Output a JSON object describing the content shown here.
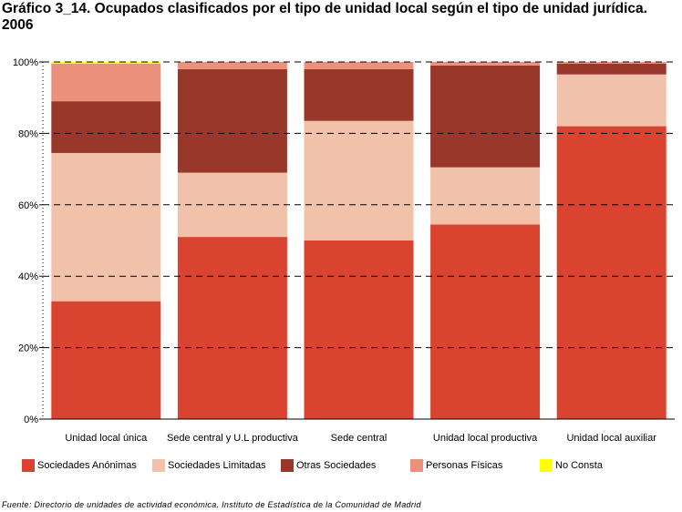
{
  "title": "Gráfico 3_14. Ocupados clasificados por el tipo de unidad local según el tipo de unidad jurídica. 2006",
  "source": "Fuente: Directorio de unidades de actividad económica. Instituto de Estadística de la Comunidad de Madrid",
  "chart_data": {
    "type": "bar",
    "stacked": true,
    "percent": true,
    "title": "Gráfico 3_14. Ocupados clasificados por el tipo de unidad local según el tipo de unidad jurídica. 2006",
    "xlabel": "",
    "ylabel": "",
    "ylim": [
      0,
      100
    ],
    "yticks": [
      0,
      20,
      40,
      60,
      80,
      100
    ],
    "ytick_labels": [
      "0%",
      "20%",
      "40%",
      "60%",
      "80%",
      "100%"
    ],
    "grid": true,
    "legend_position": "bottom",
    "categories": [
      "Unidad local única",
      "Sede central y U.L productiva",
      "Sede central",
      "Unidad local productiva",
      "Unidad local auxiliar"
    ],
    "series": [
      {
        "name": "Sociedades Anónimas",
        "color": "#db4331",
        "values": [
          33.0,
          51.0,
          50.0,
          54.5,
          82.0
        ]
      },
      {
        "name": "Sociedades Limitadas",
        "color": "#f2c1aa",
        "values": [
          41.5,
          18.0,
          33.5,
          16.0,
          14.5
        ]
      },
      {
        "name": "Otras Sociedades",
        "color": "#99372b",
        "values": [
          14.5,
          29.0,
          14.5,
          28.5,
          3.0
        ]
      },
      {
        "name": "Personas Físicas",
        "color": "#eb917b",
        "values": [
          10.5,
          2.0,
          2.0,
          1.0,
          0.5
        ]
      },
      {
        "name": "No Consta",
        "color": "#ffff00",
        "values": [
          0.5,
          0.0,
          0.0,
          0.0,
          0.0
        ]
      }
    ]
  }
}
